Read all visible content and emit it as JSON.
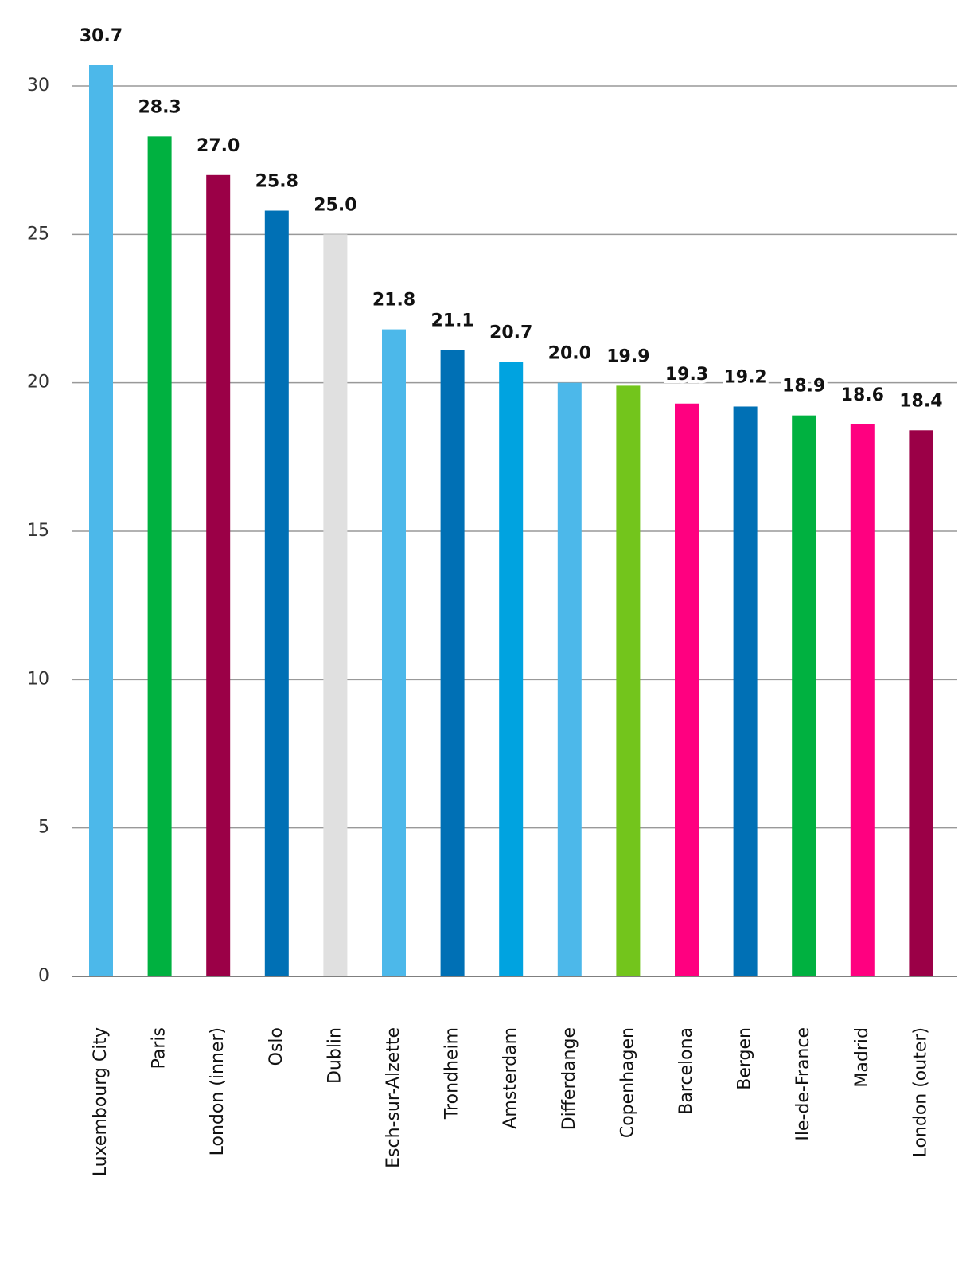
{
  "chart_data": {
    "type": "bar",
    "categories": [
      "Luxembourg City",
      "Paris",
      "London (inner)",
      "Oslo",
      "Dublin",
      "Esch-sur-Alzette",
      "Trondheim",
      "Amsterdam",
      "Differdange",
      "Copenhagen",
      "Barcelona",
      "Bergen",
      "Ile-de-France",
      "Madrid",
      "London (outer)"
    ],
    "values": [
      30.7,
      28.3,
      27.0,
      25.8,
      25.0,
      21.8,
      21.1,
      20.7,
      20.0,
      19.9,
      19.3,
      19.2,
      18.9,
      18.6,
      18.4
    ],
    "value_labels": [
      "30.7",
      "28.3",
      "27.0",
      "25.8",
      "25.0",
      "21.8",
      "21.1",
      "20.7",
      "20.0",
      "19.9",
      "19.3",
      "19.2",
      "18.9",
      "18.6",
      "18.4"
    ],
    "colors": [
      "#4cb8ea",
      "#00b140",
      "#9b0047",
      "#0070b5",
      "#e0e0e0",
      "#4cb8ea",
      "#0070b5",
      "#00a3e0",
      "#4cb8ea",
      "#73c51c",
      "#ff0080",
      "#0070b5",
      "#00b140",
      "#ff0080",
      "#9b0047"
    ],
    "ylim": [
      0,
      30
    ],
    "yticks": [
      0,
      5,
      10,
      15,
      20,
      25,
      30
    ],
    "grid": true
  }
}
